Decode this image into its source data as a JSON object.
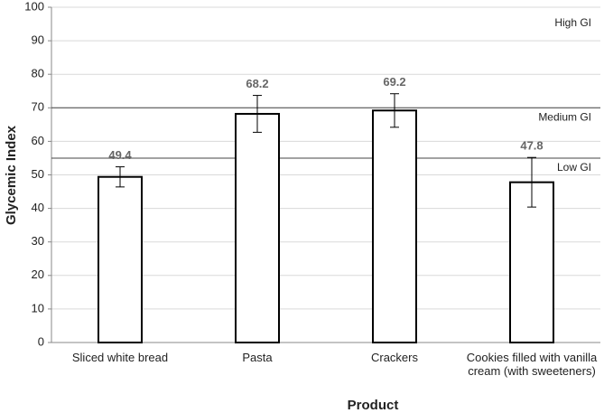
{
  "chart_data": {
    "type": "bar",
    "x_label": "Product",
    "y_label": "Glycemic Index",
    "categories": [
      "Sliced white bread",
      "Pasta",
      "Crackers",
      "Cookies filled with vanilla cream (with sweeteners)"
    ],
    "values": [
      49.4,
      68.2,
      69.2,
      47.8
    ],
    "errors": [
      3,
      5.5,
      5,
      7.4
    ],
    "color": "#ffffff",
    "ylim": [
      0,
      100
    ],
    "yticks": [
      0,
      10,
      20,
      30,
      40,
      50,
      60,
      70,
      80,
      90,
      100
    ],
    "grid": true,
    "thresholds": [
      55,
      70
    ],
    "zones": [
      "Low GI",
      "Medium GI",
      "High GI"
    ]
  }
}
